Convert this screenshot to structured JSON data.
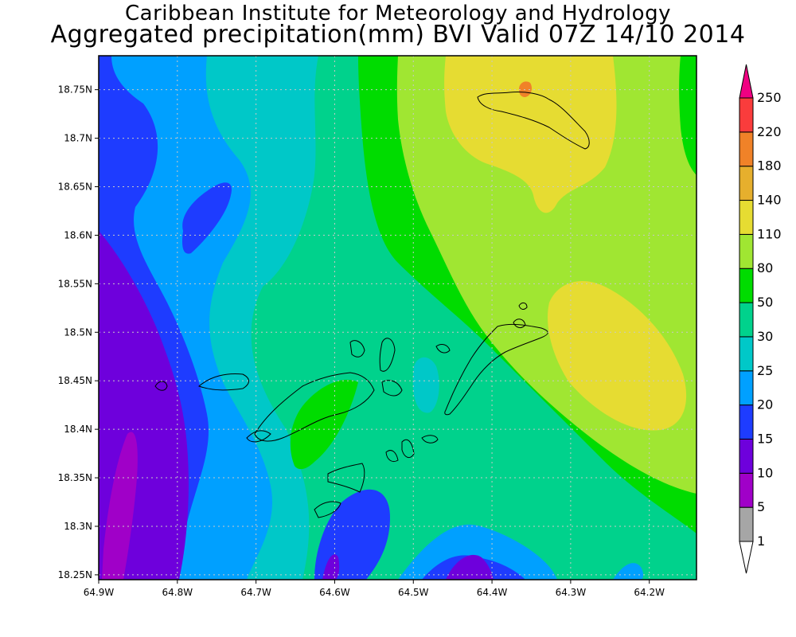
{
  "header": {
    "title": "Caribbean Institute for Meteorology and Hydrology",
    "subtitle": "Aggregated precipitation(mm) BVI Valid 07Z 14/10 2014"
  },
  "map": {
    "lon_ticks": [
      "64.9W",
      "64.8W",
      "64.7W",
      "64.6W",
      "64.5W",
      "64.4W",
      "64.3W",
      "64.2W"
    ],
    "lat_ticks": [
      "18.75N",
      "18.7N",
      "18.65N",
      "18.6N",
      "18.55N",
      "18.5N",
      "18.45N",
      "18.4N",
      "18.35N",
      "18.3N",
      "18.25N"
    ],
    "lon_range": [
      -64.9,
      -64.14
    ],
    "lat_range": [
      18.245,
      18.785
    ]
  },
  "colorbar": {
    "levels": [
      "1",
      "5",
      "10",
      "15",
      "20",
      "25",
      "30",
      "50",
      "80",
      "110",
      "140",
      "180",
      "220",
      "250"
    ],
    "colors": [
      "#ffffff",
      "#a6a6a6",
      "#a000c8",
      "#6e00dc",
      "#1e3cff",
      "#00a0ff",
      "#00c8c8",
      "#00d28c",
      "#00dc00",
      "#a0e632",
      "#e6dc32",
      "#e6af2d",
      "#f08228",
      "#fa3c3c",
      "#f00082"
    ]
  }
}
